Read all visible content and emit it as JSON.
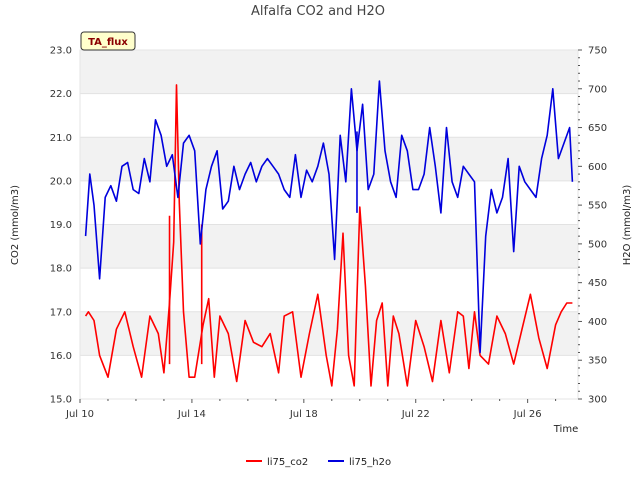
{
  "chart_data": {
    "type": "line",
    "title": "Alfalfa CO2 and H2O",
    "badge": "TA_flux",
    "xlabel": "Time",
    "ylabel_left": "CO2 (mmol/m3)",
    "ylabel_right": "H2O (mmol/m3)",
    "x_ticks": [
      "Jul 10",
      "Jul 14",
      "Jul 18",
      "Jul 22",
      "Jul 26"
    ],
    "y_left_ticks": [
      "15.0",
      "16.0",
      "17.0",
      "18.0",
      "19.0",
      "20.0",
      "21.0",
      "22.0",
      "23.0"
    ],
    "y_right_ticks": [
      "300",
      "350",
      "400",
      "450",
      "500",
      "550",
      "600",
      "650",
      "700",
      "750"
    ],
    "ylim_left": [
      15,
      23
    ],
    "ylim_right": [
      300,
      750
    ],
    "xlim_days": [
      10,
      27.8
    ],
    "grid": "horizontal bands",
    "legend_position": "bottom-center",
    "series": [
      {
        "name": "li75_co2",
        "axis": "left",
        "color": "#ff0000",
        "x": [
          10.2,
          10.3,
          10.5,
          10.7,
          11.0,
          11.3,
          11.6,
          11.9,
          12.2,
          12.5,
          12.8,
          13.0,
          13.2,
          13.35,
          13.45,
          13.55,
          13.7,
          13.9,
          14.1,
          14.4,
          14.6,
          14.8,
          15.0,
          15.3,
          15.6,
          15.9,
          16.2,
          16.5,
          16.8,
          17.1,
          17.3,
          17.6,
          17.9,
          18.2,
          18.5,
          18.8,
          19.0,
          19.2,
          19.4,
          19.6,
          19.8,
          20.0,
          20.2,
          20.4,
          20.6,
          20.8,
          21.0,
          21.2,
          21.4,
          21.7,
          22.0,
          22.3,
          22.6,
          22.9,
          23.2,
          23.5,
          23.7,
          23.9,
          24.1,
          24.3,
          24.6,
          24.9,
          25.2,
          25.5,
          25.8,
          26.1,
          26.4,
          26.7,
          27.0,
          27.2,
          27.4,
          27.6
        ],
        "y": [
          16.9,
          17.0,
          16.8,
          16.0,
          15.5,
          16.6,
          17.0,
          16.2,
          15.5,
          16.9,
          16.5,
          15.6,
          17.2,
          18.6,
          22.2,
          19.5,
          17.0,
          15.5,
          15.5,
          16.7,
          17.3,
          15.5,
          16.9,
          16.5,
          15.4,
          16.8,
          16.3,
          16.2,
          16.5,
          15.6,
          16.9,
          17.0,
          15.5,
          16.5,
          17.4,
          16.0,
          15.3,
          16.6,
          18.8,
          16.0,
          15.3,
          19.4,
          17.6,
          15.3,
          16.8,
          17.2,
          15.3,
          16.9,
          16.5,
          15.3,
          16.8,
          16.2,
          15.4,
          16.8,
          15.6,
          17.0,
          16.9,
          15.7,
          17.0,
          16.0,
          15.8,
          16.9,
          16.5,
          15.8,
          16.6,
          17.4,
          16.4,
          15.7,
          16.7,
          17.0,
          17.2,
          17.2
        ],
        "extra_spikes": [
          {
            "x": 14.35,
            "y": 19.0
          },
          {
            "x": 13.2,
            "y": 19.2
          }
        ]
      },
      {
        "name": "li75_h2o",
        "axis": "right",
        "color": "#0000dd",
        "x": [
          10.2,
          10.35,
          10.5,
          10.7,
          10.9,
          11.1,
          11.3,
          11.5,
          11.7,
          11.9,
          12.1,
          12.3,
          12.5,
          12.7,
          12.9,
          13.1,
          13.3,
          13.5,
          13.7,
          13.9,
          14.1,
          14.3,
          14.5,
          14.7,
          14.9,
          15.1,
          15.3,
          15.5,
          15.7,
          15.9,
          16.1,
          16.3,
          16.5,
          16.7,
          16.9,
          17.1,
          17.3,
          17.5,
          17.7,
          17.9,
          18.1,
          18.3,
          18.5,
          18.7,
          18.9,
          19.1,
          19.3,
          19.5,
          19.7,
          19.9,
          20.1,
          20.3,
          20.5,
          20.7,
          20.9,
          21.1,
          21.3,
          21.5,
          21.7,
          21.9,
          22.1,
          22.3,
          22.5,
          22.7,
          22.9,
          23.1,
          23.3,
          23.5,
          23.7,
          23.9,
          24.1,
          24.3,
          24.5,
          24.7,
          24.9,
          25.1,
          25.3,
          25.5,
          25.7,
          25.9,
          26.1,
          26.3,
          26.5,
          26.7,
          26.9,
          27.1,
          27.3,
          27.5,
          27.6
        ],
        "y": [
          510,
          590,
          550,
          455,
          560,
          575,
          555,
          600,
          605,
          570,
          565,
          610,
          580,
          660,
          640,
          600,
          615,
          560,
          630,
          640,
          620,
          500,
          570,
          600,
          620,
          545,
          555,
          600,
          570,
          590,
          605,
          580,
          600,
          610,
          600,
          590,
          570,
          560,
          615,
          560,
          595,
          580,
          600,
          630,
          590,
          480,
          640,
          580,
          700,
          620,
          680,
          570,
          590,
          710,
          620,
          580,
          560,
          640,
          620,
          570,
          570,
          590,
          650,
          600,
          540,
          650,
          580,
          560,
          600,
          590,
          580,
          360,
          510,
          570,
          540,
          560,
          610,
          490,
          600,
          580,
          570,
          560,
          610,
          640,
          700,
          610,
          630,
          650,
          580
        ],
        "extra_spikes": [
          {
            "x": 19.9,
            "y": 645
          }
        ]
      }
    ]
  }
}
